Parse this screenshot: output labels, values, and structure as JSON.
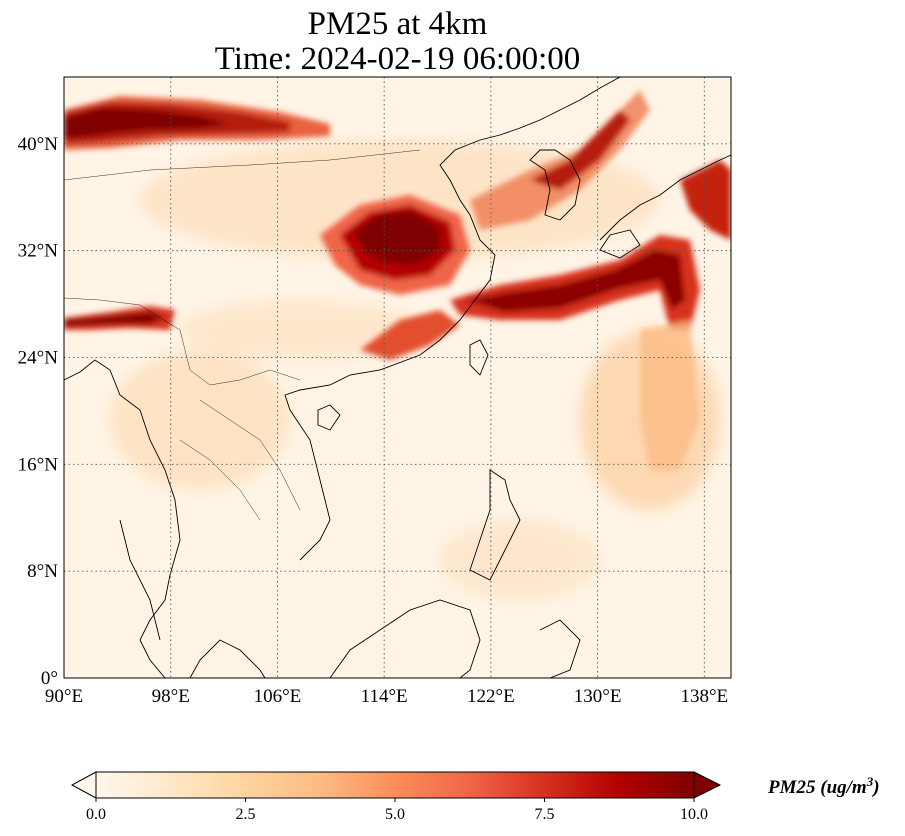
{
  "title": {
    "line1": "PM25 at 4km",
    "line2": "Time: 2024-02-19 06:00:00"
  },
  "map": {
    "lon_range": [
      90,
      140
    ],
    "lat_range": [
      0,
      45
    ],
    "lon_ticks": [
      {
        "value": 90,
        "label": "90°E"
      },
      {
        "value": 98,
        "label": "98°E"
      },
      {
        "value": 106,
        "label": "106°E"
      },
      {
        "value": 114,
        "label": "114°E"
      },
      {
        "value": 122,
        "label": "122°E"
      },
      {
        "value": 130,
        "label": "130°E"
      },
      {
        "value": 138,
        "label": "138°E"
      }
    ],
    "lat_ticks": [
      {
        "value": 0,
        "label": "0°"
      },
      {
        "value": 8,
        "label": "8°N"
      },
      {
        "value": 16,
        "label": "16°N"
      },
      {
        "value": 24,
        "label": "24°N"
      },
      {
        "value": 32,
        "label": "32°N"
      },
      {
        "value": 40,
        "label": "40°N"
      }
    ],
    "gridlines": "dotted",
    "colormap": "OrRd"
  },
  "colorbar": {
    "label": "PM25 (ug/m",
    "label_sup": "3",
    "label_close": ")",
    "min": 0.0,
    "max": 10.0,
    "extend": "both",
    "ticks": [
      {
        "value": 0.0,
        "label": "0.0"
      },
      {
        "value": 2.5,
        "label": "2.5"
      },
      {
        "value": 5.0,
        "label": "5.0"
      },
      {
        "value": 7.5,
        "label": "7.5"
      },
      {
        "value": 10.0,
        "label": "10.0"
      }
    ],
    "colors": [
      "#fff7ec",
      "#fee8c8",
      "#fdd49e",
      "#fdbb84",
      "#fc8d59",
      "#ef6548",
      "#d7301f",
      "#b30000",
      "#7f0000"
    ]
  }
}
